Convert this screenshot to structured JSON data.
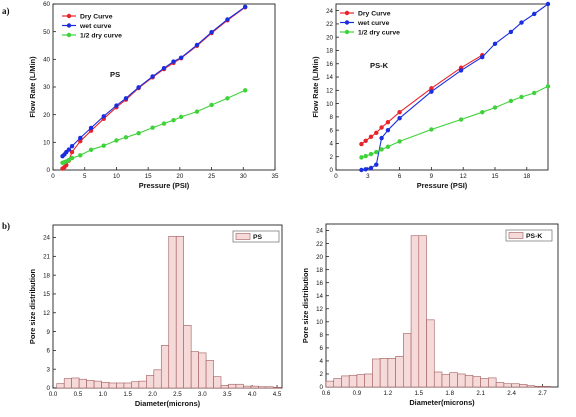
{
  "panel_labels": {
    "a": "a)",
    "b": "b)"
  },
  "chart_data": [
    {
      "id": "a-ps",
      "type": "line",
      "inset_label": "PS",
      "xlabel": "Pressure (PSI)",
      "ylabel": "Flow Rate (L/Min)",
      "xlim": [
        0,
        35
      ],
      "ylim": [
        0,
        60
      ],
      "xticks": [
        0,
        5,
        10,
        15,
        20,
        25,
        30,
        35
      ],
      "yticks": [
        0,
        10,
        20,
        30,
        40,
        50,
        60
      ],
      "legend_position": "top-left",
      "series": [
        {
          "name": "Dry Curve",
          "color": "#e8242a",
          "x": [
            1.5,
            1.8,
            2.1,
            2.5,
            3.0,
            4.3,
            6.0,
            8.0,
            10.0,
            11.5,
            13.5,
            15.7,
            17.5,
            19.0,
            20.2,
            22.7,
            25.0,
            27.5,
            30.3
          ],
          "y": [
            0.5,
            1.0,
            1.8,
            3.4,
            6.5,
            10.4,
            14.2,
            18.5,
            22.7,
            25.4,
            29.6,
            33.5,
            36.5,
            38.7,
            40.4,
            44.9,
            49.5,
            54.1,
            58.8
          ]
        },
        {
          "name": "wet curve",
          "color": "#1a2de0",
          "x": [
            1.5,
            1.8,
            2.1,
            2.5,
            3.0,
            4.3,
            6.0,
            8.0,
            10.0,
            11.5,
            13.5,
            15.7,
            17.5,
            19.0,
            20.2,
            22.7,
            25.0,
            27.5,
            30.3
          ],
          "y": [
            5.0,
            5.6,
            6.5,
            7.4,
            8.6,
            11.6,
            15.2,
            19.4,
            23.3,
            25.9,
            29.9,
            33.8,
            36.8,
            39.2,
            40.6,
            45.2,
            49.8,
            54.4,
            59.0
          ]
        },
        {
          "name": "1/2 dry curve",
          "color": "#3fd23a",
          "x": [
            1.5,
            1.8,
            2.1,
            2.5,
            3.0,
            4.3,
            6.0,
            8.0,
            10.0,
            11.5,
            13.5,
            15.7,
            17.5,
            19.0,
            20.2,
            22.7,
            25.0,
            27.5,
            30.3
          ],
          "y": [
            2.6,
            2.8,
            3.1,
            3.6,
            4.3,
            5.3,
            7.3,
            8.8,
            10.7,
            11.8,
            13.3,
            15.3,
            16.8,
            18.0,
            19.2,
            21.1,
            23.5,
            25.9,
            28.8
          ]
        }
      ]
    },
    {
      "id": "a-psk",
      "type": "line",
      "inset_label": "PS-K",
      "xlabel": "Pressure (PSI)",
      "ylabel": "Flow Rate (L/Min)",
      "xlim": [
        0,
        20
      ],
      "ylim": [
        0,
        25
      ],
      "xticks": [
        0,
        3,
        6,
        9,
        12,
        15,
        18
      ],
      "yticks": [
        0,
        2,
        4,
        6,
        8,
        10,
        12,
        14,
        16,
        18,
        20,
        22,
        24
      ],
      "legend_position": "top-left",
      "series": [
        {
          "name": "Dry Curve",
          "color": "#e8242a",
          "x": [
            2.4,
            2.8,
            3.3,
            3.8,
            4.3,
            4.9,
            6.0,
            9.0,
            11.8,
            13.8
          ],
          "y": [
            3.9,
            4.4,
            5.0,
            5.6,
            6.4,
            7.2,
            8.7,
            12.3,
            15.4,
            17.3
          ]
        },
        {
          "name": "wet curve",
          "color": "#1a2de0",
          "x": [
            2.4,
            2.8,
            3.3,
            3.8,
            4.3,
            4.9,
            6.0,
            9.0,
            11.8,
            13.8,
            15.0,
            16.5,
            17.5,
            18.7,
            20.0
          ],
          "y": [
            0.0,
            0.1,
            0.3,
            0.8,
            4.8,
            6.0,
            7.8,
            11.8,
            15.0,
            17.0,
            19.0,
            20.8,
            22.2,
            23.5,
            25.0
          ]
        },
        {
          "name": "1/2 dry curve",
          "color": "#3fd23a",
          "x": [
            2.4,
            2.8,
            3.3,
            3.8,
            4.3,
            4.9,
            6.0,
            9.0,
            11.8,
            13.8,
            15.0,
            16.5,
            17.5,
            18.7,
            20.0
          ],
          "y": [
            1.9,
            2.1,
            2.4,
            2.7,
            3.1,
            3.5,
            4.3,
            6.1,
            7.6,
            8.7,
            9.4,
            10.4,
            11.0,
            11.6,
            12.6
          ]
        }
      ]
    },
    {
      "id": "b-ps",
      "type": "bar",
      "legend": "PS",
      "legend_position": "top-right",
      "xlabel": "Diameter(microns)",
      "ylabel": "Pore size distribution",
      "xlim": [
        0,
        4.6
      ],
      "ylim": [
        0,
        26
      ],
      "xticks": [
        "0.0",
        "0.5",
        "1.0",
        "1.5",
        "2.0",
        "2.5",
        "3.0",
        "3.5",
        "4.0",
        "4.5"
      ],
      "yticks": [
        0,
        3,
        6,
        9,
        12,
        15,
        18,
        21,
        24
      ],
      "bar_width": 0.15,
      "bar_fill": "#f6dada",
      "bar_edge": "#a05a5a",
      "x": [
        0.15,
        0.3,
        0.45,
        0.6,
        0.75,
        0.9,
        1.05,
        1.2,
        1.35,
        1.5,
        1.65,
        1.8,
        1.95,
        2.1,
        2.25,
        2.4,
        2.55,
        2.7,
        2.85,
        3.0,
        3.15,
        3.3,
        3.45,
        3.6,
        3.75,
        3.9,
        4.05,
        4.2,
        4.35,
        4.5
      ],
      "values": [
        0.7,
        1.5,
        1.6,
        1.4,
        1.2,
        1.1,
        0.9,
        0.8,
        0.8,
        0.8,
        1.0,
        1.1,
        2.0,
        2.9,
        6.8,
        24.2,
        24.2,
        10.0,
        5.8,
        5.6,
        4.4,
        1.8,
        0.4,
        0.6,
        0.6,
        0.3,
        0.3,
        0.2,
        0.2,
        0.1
      ]
    },
    {
      "id": "b-psk",
      "type": "bar",
      "legend": "PS-K",
      "legend_position": "top-right",
      "xlabel": "Diameter(microns)",
      "ylabel": "Pore size distribution",
      "xlim": [
        0.6,
        2.85
      ],
      "ylim": [
        0,
        25
      ],
      "xticks": [
        "0.6",
        "0.9",
        "1.2",
        "1.5",
        "1.8",
        "2.1",
        "2.4",
        "2.7"
      ],
      "yticks": [
        0,
        2,
        4,
        6,
        8,
        10,
        12,
        14,
        16,
        18,
        20,
        22,
        24
      ],
      "bar_width": 0.075,
      "bar_fill": "#f6dada",
      "bar_edge": "#a05a5a",
      "x": [
        0.6375,
        0.7125,
        0.7875,
        0.8625,
        0.9375,
        1.0125,
        1.0875,
        1.1625,
        1.2375,
        1.3125,
        1.3875,
        1.4625,
        1.5375,
        1.6125,
        1.6875,
        1.7625,
        1.8375,
        1.9125,
        1.9875,
        2.0625,
        2.1375,
        2.2125,
        2.2875,
        2.3625,
        2.4375,
        2.5125,
        2.5875,
        2.6625,
        2.7375,
        2.8125
      ],
      "values": [
        0.9,
        1.3,
        1.7,
        1.8,
        1.9,
        2.0,
        4.3,
        4.4,
        4.4,
        4.7,
        8.2,
        23.2,
        23.2,
        10.3,
        2.3,
        1.9,
        2.2,
        2.0,
        1.8,
        1.6,
        1.3,
        1.4,
        0.7,
        0.5,
        0.5,
        0.4,
        0.2,
        0.1,
        0.1,
        0.0
      ]
    }
  ]
}
